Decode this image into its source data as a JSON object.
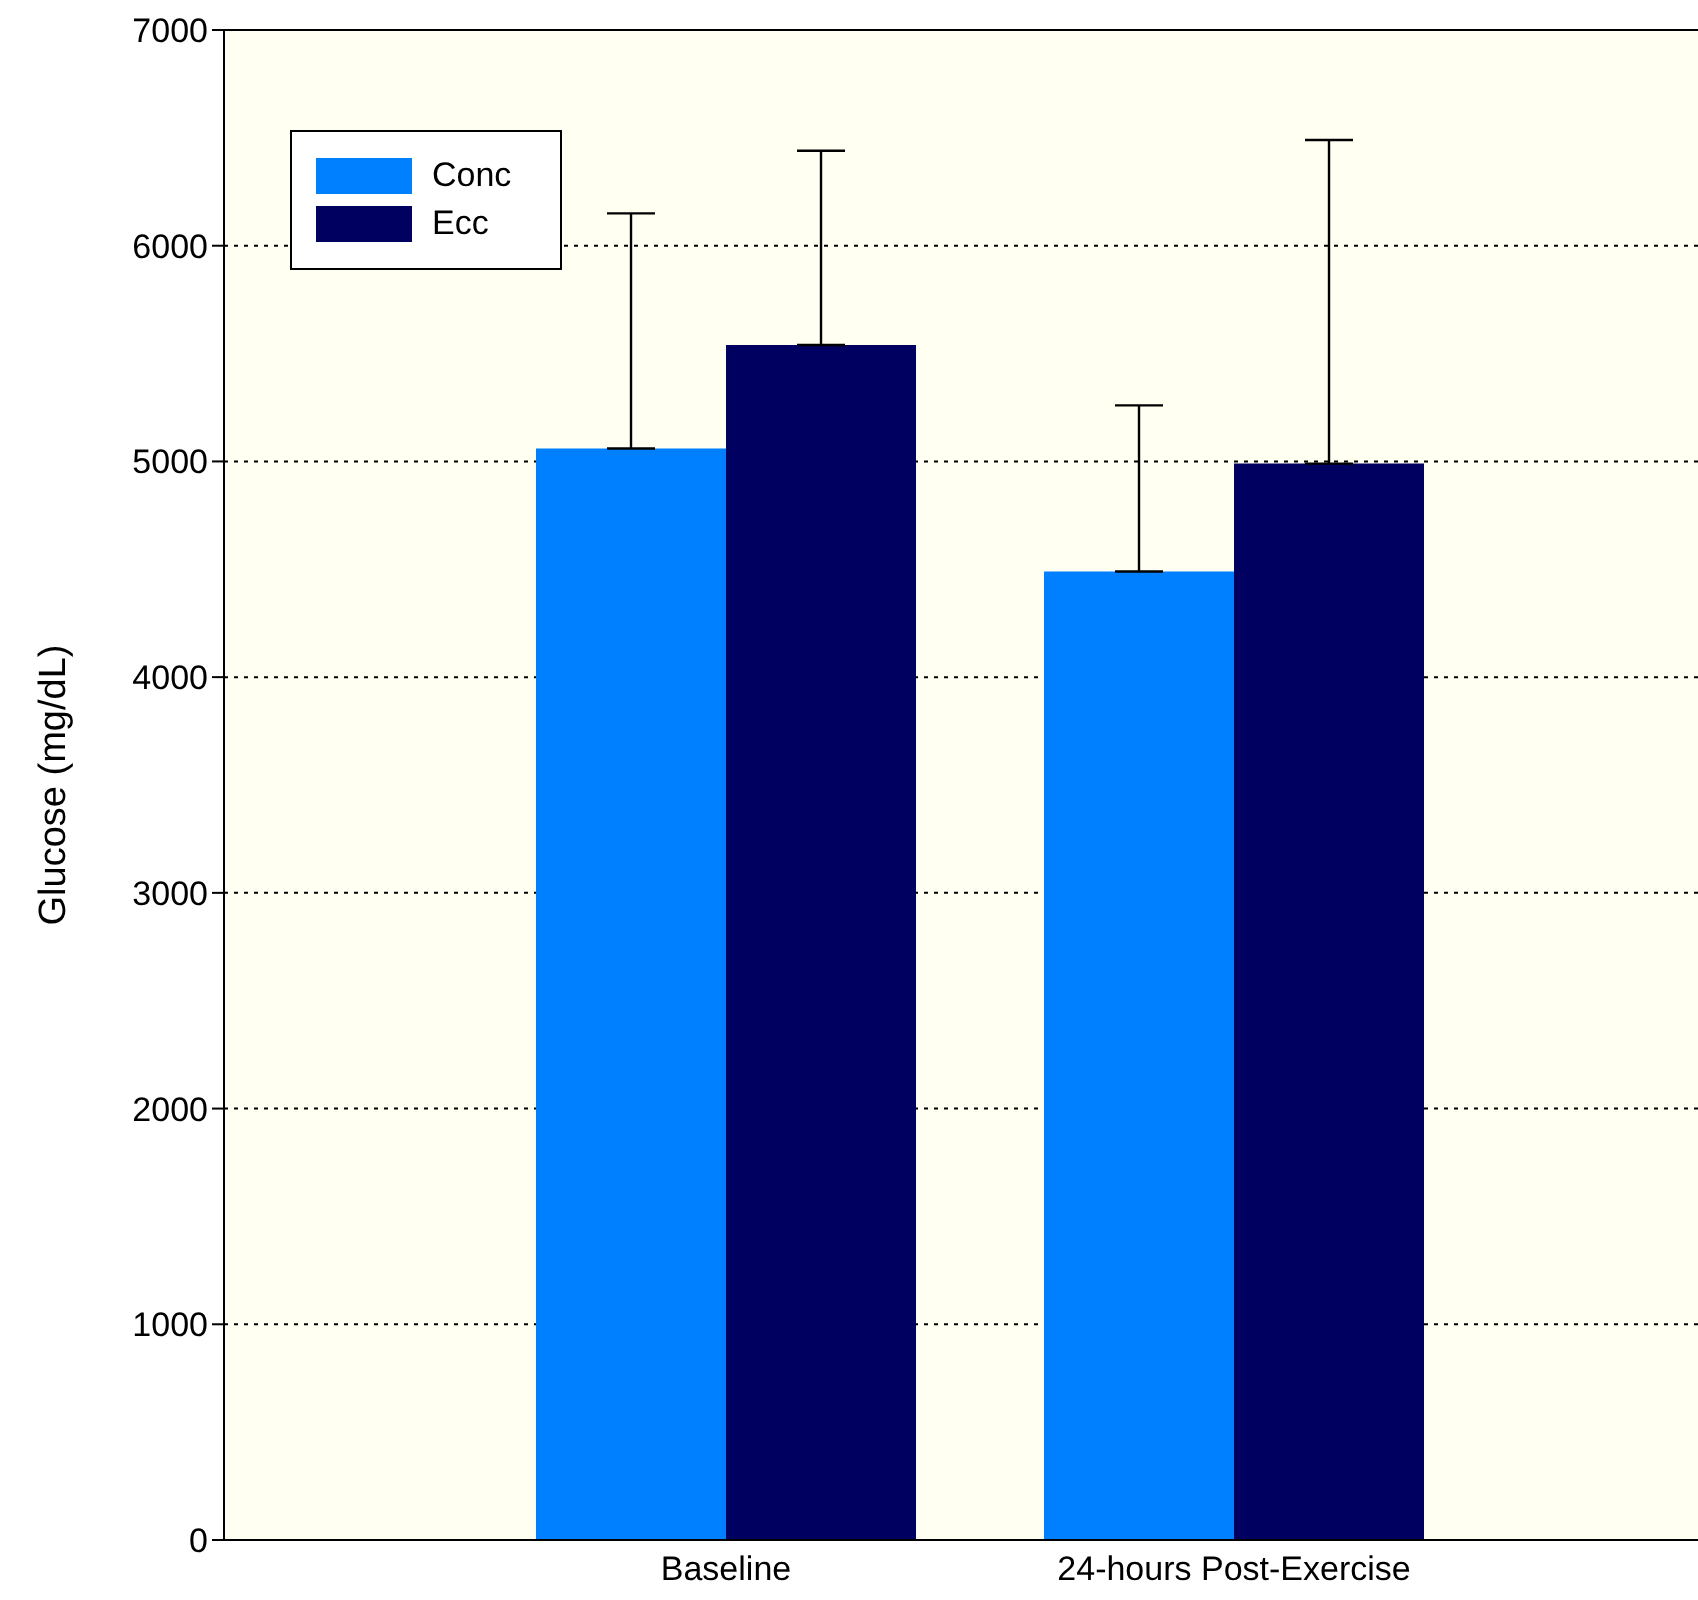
{
  "chart_data": {
    "type": "bar",
    "ylabel": "Glucose (mg/dL)",
    "categories": [
      "Baseline",
      "24-hours Post-Exercise"
    ],
    "series": [
      {
        "name": "Conc",
        "color": "#0080ff",
        "values": [
          5060,
          4490
        ],
        "errors": [
          [
            5060,
            6150
          ],
          [
            4490,
            5260
          ]
        ]
      },
      {
        "name": "Ecc",
        "color": "#000060",
        "values": [
          5540,
          4990
        ],
        "errors": [
          [
            5540,
            6440
          ],
          [
            4990,
            6490
          ]
        ]
      }
    ],
    "ylim": [
      0,
      7000
    ],
    "yticks": [
      0,
      1000,
      2000,
      3000,
      4000,
      5000,
      6000,
      7000
    ],
    "grid": "y",
    "legend": "top left"
  }
}
